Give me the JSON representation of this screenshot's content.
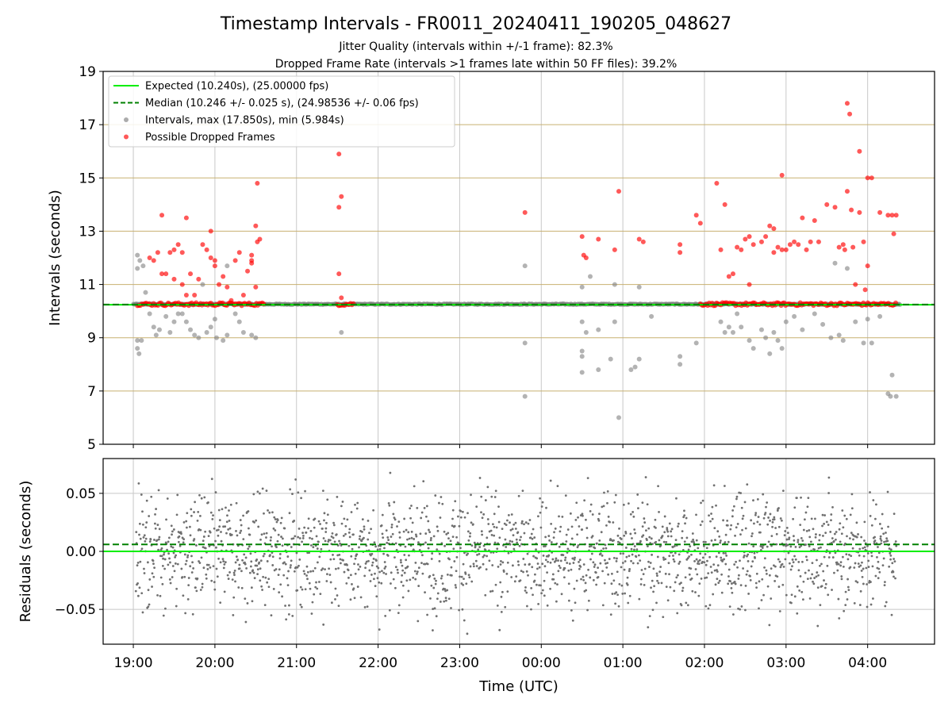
{
  "figure": {
    "title": "Timestamp Intervals - FR0011_20240411_190205_048627",
    "subtitle_line1": "Jitter Quality (intervals within +/-1 frame): 82.3%",
    "subtitle_line2": "Dropped Frame Rate (intervals >1 frames late within 50 FF files): 39.2%"
  },
  "colors": {
    "expected": "#00ee00",
    "median": "#008000",
    "intervals": "#808080",
    "dropped": "#ff0000",
    "hgrid": "#c8b070",
    "vgrid": "#c8c8c8",
    "residuals": "#707070"
  },
  "chart_data": [
    {
      "type": "scatter",
      "panel": "top",
      "xlabel": "",
      "ylabel": "Intervals (seconds)",
      "ylim": [
        5,
        19
      ],
      "yticks": [
        "5",
        "7",
        "9",
        "11",
        "13",
        "15",
        "17",
        "19"
      ],
      "xlim_hours": [
        18.63,
        28.82
      ],
      "legend_position": "upper-left",
      "legend": [
        {
          "marker": "line-solid",
          "color": "#00ee00",
          "label": "Expected (10.240s), (25.00000 fps)"
        },
        {
          "marker": "line-dashed",
          "color": "#008000",
          "label": "Median (10.246 +/- 0.025 s), (24.98536 +/- 0.06 fps)"
        },
        {
          "marker": "dot",
          "color": "#808080",
          "label": "Intervals, max (17.850s), min (5.984s)"
        },
        {
          "marker": "dot",
          "color": "#ff0000",
          "label": "Possible Dropped Frames"
        }
      ],
      "expected_interval": 10.24,
      "median_interval": 10.246,
      "series": [
        {
          "name": "Intervals, max (17.850s), min (5.984s)",
          "points": [
            [
              19.05,
              12.1
            ],
            [
              19.05,
              11.6
            ],
            [
              19.08,
              11.9
            ],
            [
              19.05,
              8.9
            ],
            [
              19.1,
              8.9
            ],
            [
              19.05,
              8.6
            ],
            [
              19.07,
              8.4
            ],
            [
              19.12,
              11.7
            ],
            [
              19.15,
              10.7
            ],
            [
              19.2,
              9.9
            ],
            [
              19.25,
              9.4
            ],
            [
              19.28,
              9.1
            ],
            [
              19.32,
              9.3
            ],
            [
              19.4,
              9.8
            ],
            [
              19.45,
              9.2
            ],
            [
              19.5,
              9.6
            ],
            [
              19.55,
              9.9
            ],
            [
              19.65,
              9.6
            ],
            [
              19.7,
              9.3
            ],
            [
              19.75,
              9.1
            ],
            [
              19.8,
              9.0
            ],
            [
              19.85,
              11.0
            ],
            [
              19.9,
              9.2
            ],
            [
              19.95,
              9.4
            ],
            [
              20.0,
              9.7
            ],
            [
              20.02,
              9.0
            ],
            [
              20.1,
              8.9
            ],
            [
              20.15,
              9.1
            ],
            [
              20.15,
              11.7
            ],
            [
              20.25,
              9.9
            ],
            [
              20.3,
              9.6
            ],
            [
              20.35,
              9.2
            ],
            [
              20.45,
              9.1
            ],
            [
              20.5,
              9.0
            ],
            [
              19.6,
              9.9
            ],
            [
              21.55,
              9.2
            ],
            [
              23.8,
              11.7
            ],
            [
              23.8,
              8.8
            ],
            [
              23.8,
              6.8
            ],
            [
              24.5,
              10.9
            ],
            [
              24.5,
              9.6
            ],
            [
              24.55,
              9.2
            ],
            [
              24.5,
              8.5
            ],
            [
              24.5,
              8.3
            ],
            [
              24.5,
              7.7
            ],
            [
              24.6,
              11.3
            ],
            [
              24.7,
              9.3
            ],
            [
              24.7,
              7.8
            ],
            [
              24.9,
              11.0
            ],
            [
              24.85,
              8.2
            ],
            [
              24.9,
              9.6
            ],
            [
              24.95,
              6.0
            ],
            [
              25.2,
              10.9
            ],
            [
              25.15,
              7.9
            ],
            [
              25.2,
              8.2
            ],
            [
              25.1,
              7.8
            ],
            [
              25.35,
              9.8
            ],
            [
              25.7,
              8.3
            ],
            [
              25.7,
              8.0
            ],
            [
              25.9,
              8.8
            ],
            [
              26.2,
              9.6
            ],
            [
              26.25,
              9.2
            ],
            [
              26.3,
              9.4
            ],
            [
              26.35,
              9.2
            ],
            [
              26.4,
              9.9
            ],
            [
              26.45,
              9.4
            ],
            [
              26.55,
              8.9
            ],
            [
              26.6,
              8.6
            ],
            [
              26.7,
              9.3
            ],
            [
              26.75,
              9.0
            ],
            [
              26.8,
              8.4
            ],
            [
              26.85,
              9.2
            ],
            [
              26.9,
              8.9
            ],
            [
              26.95,
              8.6
            ],
            [
              27.0,
              9.6
            ],
            [
              27.1,
              9.8
            ],
            [
              27.2,
              9.3
            ],
            [
              27.35,
              9.9
            ],
            [
              27.45,
              9.5
            ],
            [
              27.55,
              9.0
            ],
            [
              27.65,
              9.1
            ],
            [
              27.7,
              8.9
            ],
            [
              27.85,
              9.6
            ],
            [
              27.95,
              8.8
            ],
            [
              28.0,
              9.7
            ],
            [
              28.05,
              8.8
            ],
            [
              28.15,
              9.8
            ],
            [
              28.25,
              6.9
            ],
            [
              28.28,
              6.8
            ],
            [
              28.3,
              7.6
            ],
            [
              28.35,
              6.8
            ],
            [
              27.6,
              11.8
            ],
            [
              27.75,
              11.6
            ]
          ]
        },
        {
          "name": "Possible Dropped Frames",
          "points": [
            [
              19.2,
              12.0
            ],
            [
              19.25,
              11.9
            ],
            [
              19.3,
              12.2
            ],
            [
              19.35,
              11.4
            ],
            [
              19.35,
              13.6
            ],
            [
              19.4,
              11.4
            ],
            [
              19.45,
              12.2
            ],
            [
              19.5,
              11.2
            ],
            [
              19.5,
              12.3
            ],
            [
              19.55,
              12.5
            ],
            [
              19.6,
              12.2
            ],
            [
              19.6,
              11.0
            ],
            [
              19.65,
              10.6
            ],
            [
              19.65,
              13.5
            ],
            [
              19.7,
              11.4
            ],
            [
              19.75,
              10.6
            ],
            [
              19.8,
              11.2
            ],
            [
              19.85,
              12.5
            ],
            [
              19.9,
              12.3
            ],
            [
              19.95,
              13.0
            ],
            [
              19.95,
              12.0
            ],
            [
              20.0,
              11.9
            ],
            [
              20.0,
              11.7
            ],
            [
              20.05,
              11.0
            ],
            [
              20.1,
              11.3
            ],
            [
              20.15,
              10.9
            ],
            [
              20.2,
              10.4
            ],
            [
              20.25,
              11.9
            ],
            [
              20.3,
              12.2
            ],
            [
              20.35,
              10.6
            ],
            [
              20.4,
              11.5
            ],
            [
              20.45,
              11.8
            ],
            [
              20.45,
              12.1
            ],
            [
              20.5,
              10.9
            ],
            [
              20.5,
              13.2
            ],
            [
              20.52,
              12.6
            ],
            [
              20.55,
              12.7
            ],
            [
              20.52,
              14.8
            ],
            [
              20.45,
              11.9
            ],
            [
              21.52,
              15.9
            ],
            [
              21.52,
              13.9
            ],
            [
              21.55,
              14.3
            ],
            [
              21.52,
              11.4
            ],
            [
              21.55,
              10.5
            ],
            [
              23.8,
              13.7
            ],
            [
              24.5,
              12.8
            ],
            [
              24.52,
              12.1
            ],
            [
              24.55,
              12.0
            ],
            [
              24.7,
              12.7
            ],
            [
              24.9,
              12.3
            ],
            [
              24.95,
              14.5
            ],
            [
              25.2,
              12.7
            ],
            [
              25.25,
              12.6
            ],
            [
              25.7,
              12.5
            ],
            [
              25.7,
              12.2
            ],
            [
              25.9,
              13.6
            ],
            [
              25.95,
              13.3
            ],
            [
              26.15,
              14.8
            ],
            [
              26.2,
              12.3
            ],
            [
              26.25,
              14.0
            ],
            [
              26.3,
              11.3
            ],
            [
              26.35,
              11.4
            ],
            [
              26.4,
              12.4
            ],
            [
              26.45,
              12.3
            ],
            [
              26.5,
              12.7
            ],
            [
              26.55,
              12.8
            ],
            [
              26.55,
              11.0
            ],
            [
              26.6,
              12.5
            ],
            [
              26.7,
              12.6
            ],
            [
              26.75,
              12.8
            ],
            [
              26.8,
              13.2
            ],
            [
              26.85,
              13.1
            ],
            [
              26.85,
              12.2
            ],
            [
              26.9,
              12.4
            ],
            [
              26.95,
              15.1
            ],
            [
              26.95,
              12.3
            ],
            [
              27.0,
              12.3
            ],
            [
              27.05,
              12.5
            ],
            [
              27.1,
              12.6
            ],
            [
              27.15,
              12.5
            ],
            [
              27.2,
              13.5
            ],
            [
              27.25,
              12.3
            ],
            [
              27.3,
              12.6
            ],
            [
              27.35,
              13.4
            ],
            [
              27.4,
              12.6
            ],
            [
              27.5,
              14.0
            ],
            [
              27.6,
              13.9
            ],
            [
              27.65,
              12.4
            ],
            [
              27.7,
              12.5
            ],
            [
              27.72,
              12.3
            ],
            [
              27.75,
              14.5
            ],
            [
              27.8,
              13.8
            ],
            [
              27.82,
              12.4
            ],
            [
              27.75,
              17.8
            ],
            [
              27.78,
              17.4
            ],
            [
              27.85,
              11.0
            ],
            [
              27.9,
              16.0
            ],
            [
              27.9,
              13.7
            ],
            [
              27.95,
              12.6
            ],
            [
              27.97,
              10.8
            ],
            [
              28.0,
              15.0
            ],
            [
              28.0,
              11.7
            ],
            [
              28.05,
              15.0
            ],
            [
              28.15,
              13.7
            ],
            [
              28.25,
              13.6
            ],
            [
              28.3,
              13.6
            ],
            [
              28.32,
              12.9
            ],
            [
              28.35,
              13.6
            ]
          ]
        },
        {
          "name": "Dense intervals near expected",
          "segments": [
            {
              "x_start": 19.05,
              "x_end": 20.6,
              "y": 10.26
            },
            {
              "x_start": 21.5,
              "x_end": 21.7,
              "y": 10.26
            },
            {
              "x_start": 25.95,
              "x_end": 28.35,
              "y": 10.26
            }
          ]
        }
      ]
    },
    {
      "type": "scatter",
      "panel": "bottom",
      "xlabel": "Time (UTC)",
      "ylabel": "Residuals (seconds)",
      "ylim": [
        -0.08,
        0.08
      ],
      "yticks": [
        "−0.05",
        "0.00",
        "0.05"
      ],
      "xticks": [
        "19:00",
        "20:00",
        "21:00",
        "22:00",
        "23:00",
        "00:00",
        "01:00",
        "02:00",
        "03:00",
        "04:00"
      ],
      "expected_residual": 0.0,
      "median_residual": 0.006,
      "residual_spread_sd": 0.025,
      "x_range_hours": [
        19.03,
        28.35
      ]
    }
  ]
}
